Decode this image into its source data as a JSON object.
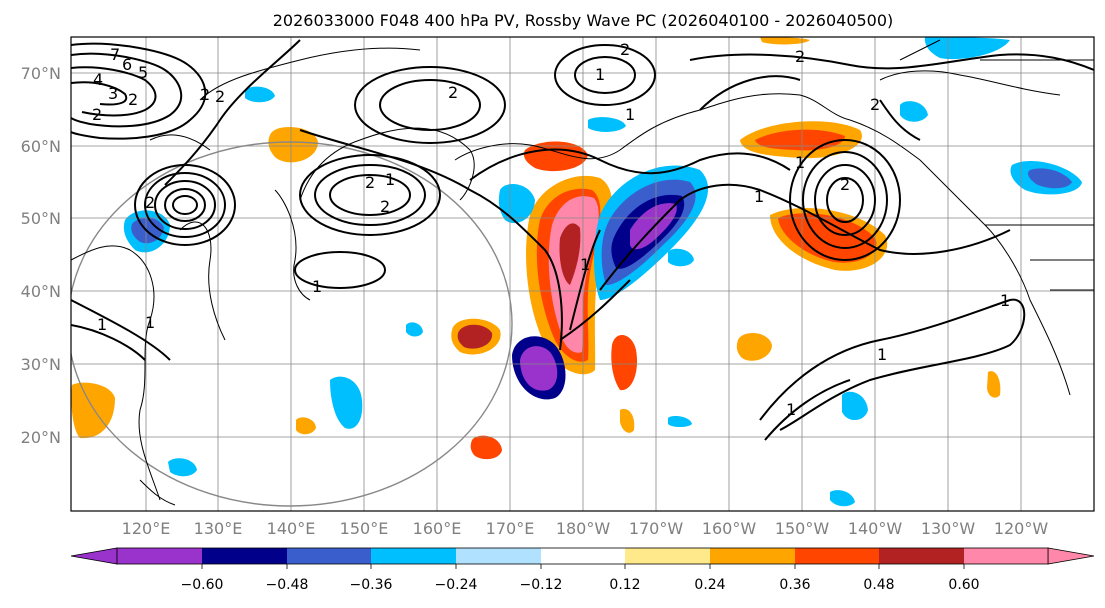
{
  "title": "2026033000 F048 400 hPa PV, Rossby Wave PC (2026040100 - 2026040500)",
  "lat_labels": [
    "70°N",
    "60°N",
    "50°N",
    "40°N",
    "30°N",
    "20°N"
  ],
  "lon_labels": [
    "120°E",
    "130°E",
    "140°E",
    "150°E",
    "160°E",
    "170°E",
    "180°W",
    "170°W",
    "160°W",
    "150°W",
    "140°W",
    "130°W",
    "120°W"
  ],
  "contour_labels": [
    "7",
    "6",
    "5",
    "4",
    "3",
    "2",
    "2",
    "1",
    "1",
    "2",
    "2",
    "2",
    "2",
    "2",
    "2",
    "2",
    "1",
    "1",
    "1",
    "1",
    "1",
    "2",
    "2",
    "2",
    "1",
    "1",
    "1",
    "1",
    "1"
  ],
  "colorbar": {
    "tick_labels": [
      "−0.60",
      "−0.48",
      "−0.36",
      "−0.24",
      "−0.12",
      "0.12",
      "0.24",
      "0.36",
      "0.48",
      "0.60"
    ],
    "colors": [
      "#9933cc",
      "#00008b",
      "#3a5fcd",
      "#00bfff",
      "#b0e2ff",
      "#ffffff",
      "#ffe98a",
      "#ffa500",
      "#ff4500",
      "#b22222",
      "#ff88aa"
    ]
  }
}
